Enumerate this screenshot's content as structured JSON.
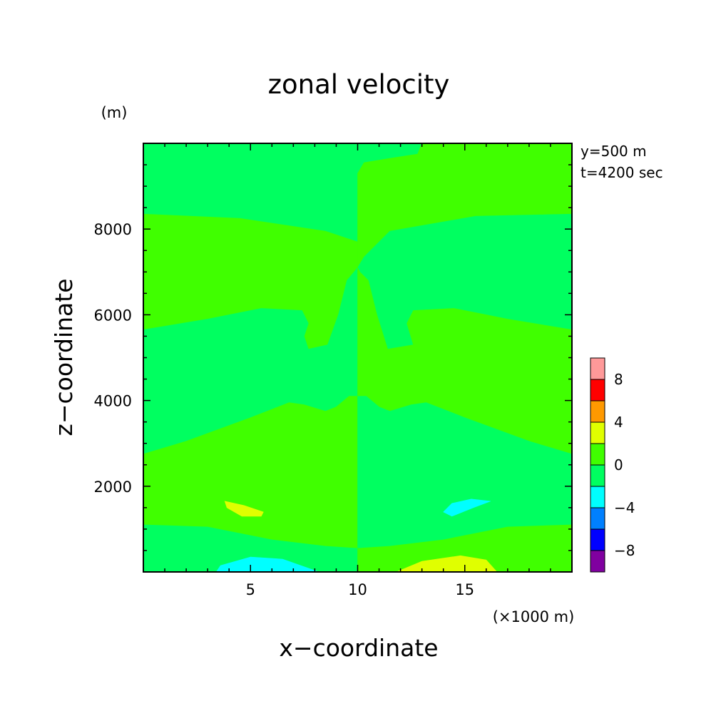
{
  "chart_data": {
    "type": "heatmap",
    "title": "zonal velocity",
    "xlabel": "x−coordinate",
    "ylabel": "z−coordinate",
    "x_unit": "(×1000 m)",
    "y_unit": "(m)",
    "annotations": [
      "y=500 m",
      "t=4200 sec"
    ],
    "xlim": [
      0,
      20
    ],
    "ylim": [
      0,
      10000
    ],
    "x_ticks": [
      5,
      10,
      15
    ],
    "y_ticks": [
      2000,
      4000,
      6000,
      8000
    ],
    "colorbar": {
      "levels": [
        -10,
        -8,
        -6,
        -4,
        -2,
        0,
        2,
        4,
        6,
        8,
        10
      ],
      "tick_labels": [
        -8,
        -4,
        0,
        4,
        8
      ],
      "colors": [
        "#8000a0",
        "#0000ff",
        "#0080ff",
        "#00ffff",
        "#00ff60",
        "#40ff00",
        "#e0ff00",
        "#ff9900",
        "#ff0000",
        "#ff9999"
      ]
    },
    "regions": [
      {
        "value_range": [
          -2,
          0
        ],
        "polygon": [
          [
            0,
            8350
          ],
          [
            4.5,
            8250
          ],
          [
            8.5,
            7950
          ],
          [
            10,
            7700
          ],
          [
            10,
            10000
          ],
          [
            0,
            10000
          ]
        ]
      },
      {
        "value_range": [
          0,
          2
        ],
        "polygon": [
          [
            0,
            8350
          ],
          [
            4.5,
            8250
          ],
          [
            8.5,
            7950
          ],
          [
            10,
            7700
          ],
          [
            10,
            7100
          ],
          [
            9.5,
            6800
          ],
          [
            9.1,
            6000
          ],
          [
            8.6,
            5300
          ],
          [
            7.7,
            5200
          ],
          [
            7.5,
            5500
          ],
          [
            7.7,
            5800
          ],
          [
            7.4,
            6100
          ],
          [
            5.5,
            6150
          ],
          [
            3,
            5900
          ],
          [
            0,
            5650
          ]
        ]
      },
      {
        "value_range": [
          -2,
          0
        ],
        "polygon": [
          [
            0,
            5650
          ],
          [
            3,
            5900
          ],
          [
            5.5,
            6150
          ],
          [
            7.4,
            6100
          ],
          [
            7.7,
            5800
          ],
          [
            7.5,
            5500
          ],
          [
            7.7,
            5200
          ],
          [
            8.6,
            5300
          ],
          [
            9.1,
            6000
          ],
          [
            9.5,
            6800
          ],
          [
            10,
            7100
          ],
          [
            10,
            4100
          ],
          [
            9.6,
            4100
          ],
          [
            9,
            3850
          ],
          [
            8.5,
            3750
          ],
          [
            7.5,
            3900
          ],
          [
            6.8,
            3950
          ],
          [
            5,
            3600
          ],
          [
            2,
            3050
          ],
          [
            0,
            2750
          ]
        ]
      },
      {
        "value_range": [
          0,
          2
        ],
        "polygon": [
          [
            0,
            2750
          ],
          [
            2,
            3050
          ],
          [
            5,
            3600
          ],
          [
            6.8,
            3950
          ],
          [
            7.5,
            3900
          ],
          [
            8.5,
            3750
          ],
          [
            9,
            3850
          ],
          [
            9.6,
            4100
          ],
          [
            10,
            4100
          ],
          [
            10,
            550
          ],
          [
            8.5,
            600
          ],
          [
            6,
            750
          ],
          [
            3,
            1050
          ],
          [
            0,
            1100
          ]
        ]
      },
      {
        "value_range": [
          -2,
          0
        ],
        "polygon": [
          [
            0,
            1100
          ],
          [
            3,
            1050
          ],
          [
            6,
            750
          ],
          [
            8.5,
            600
          ],
          [
            10,
            550
          ],
          [
            10,
            0
          ],
          [
            0,
            0
          ]
        ]
      },
      {
        "value_range": [
          -2,
          0
        ],
        "polygon": [
          [
            10,
            10000
          ],
          [
            10,
            9300
          ],
          [
            10.3,
            9550
          ],
          [
            11.5,
            9650
          ],
          [
            12.8,
            9750
          ],
          [
            13,
            10000
          ]
        ]
      },
      {
        "value_range": [
          0,
          2
        ],
        "polygon": [
          [
            10,
            9300
          ],
          [
            10,
            7100
          ],
          [
            10.3,
            7350
          ],
          [
            11.5,
            7950
          ],
          [
            15.5,
            8300
          ],
          [
            20,
            8350
          ],
          [
            20,
            10000
          ],
          [
            13,
            10000
          ],
          [
            12.8,
            9750
          ],
          [
            11.5,
            9650
          ],
          [
            10.3,
            9550
          ]
        ]
      },
      {
        "value_range": [
          -2,
          0
        ],
        "polygon": [
          [
            10,
            7100
          ],
          [
            10.3,
            7350
          ],
          [
            11.5,
            7950
          ],
          [
            15.5,
            8300
          ],
          [
            20,
            8350
          ],
          [
            20,
            5650
          ],
          [
            17,
            5900
          ],
          [
            14.5,
            6150
          ],
          [
            12.6,
            6100
          ],
          [
            12.3,
            5800
          ],
          [
            12.6,
            5300
          ],
          [
            11.4,
            5200
          ],
          [
            10.9,
            6000
          ],
          [
            10.5,
            6800
          ],
          [
            10.1,
            7000
          ]
        ]
      },
      {
        "value_range": [
          0,
          2
        ],
        "polygon": [
          [
            10,
            7100
          ],
          [
            10.1,
            7000
          ],
          [
            10.5,
            6800
          ],
          [
            10.9,
            6000
          ],
          [
            11.4,
            5200
          ],
          [
            12.6,
            5300
          ],
          [
            12.3,
            5800
          ],
          [
            12.6,
            6100
          ],
          [
            14.5,
            6150
          ],
          [
            17,
            5900
          ],
          [
            20,
            5650
          ],
          [
            20,
            2750
          ],
          [
            18,
            3050
          ],
          [
            15,
            3600
          ],
          [
            13.2,
            3950
          ],
          [
            12.5,
            3900
          ],
          [
            11.5,
            3750
          ],
          [
            11,
            3850
          ],
          [
            10.4,
            4100
          ],
          [
            10,
            4100
          ]
        ]
      },
      {
        "value_range": [
          -2,
          0
        ],
        "polygon": [
          [
            10,
            4100
          ],
          [
            10.4,
            4100
          ],
          [
            11,
            3850
          ],
          [
            11.5,
            3750
          ],
          [
            12.5,
            3900
          ],
          [
            13.2,
            3950
          ],
          [
            15,
            3600
          ],
          [
            18,
            3050
          ],
          [
            20,
            2750
          ],
          [
            20,
            1100
          ],
          [
            17,
            1050
          ],
          [
            14,
            750
          ],
          [
            11.5,
            600
          ],
          [
            10,
            550
          ]
        ]
      },
      {
        "value_range": [
          0,
          2
        ],
        "polygon": [
          [
            10,
            550
          ],
          [
            11.5,
            600
          ],
          [
            14,
            750
          ],
          [
            17,
            1050
          ],
          [
            20,
            1100
          ],
          [
            20,
            0
          ],
          [
            10,
            0
          ]
        ]
      },
      {
        "value_range": [
          2,
          4
        ],
        "polygon": [
          [
            3.8,
            1650
          ],
          [
            4.7,
            1550
          ],
          [
            5.6,
            1400
          ],
          [
            5.5,
            1300
          ],
          [
            4.6,
            1300
          ],
          [
            3.9,
            1500
          ]
        ]
      },
      {
        "value_range": [
          -4,
          -2
        ],
        "polygon": [
          [
            14.4,
            1300
          ],
          [
            15.4,
            1500
          ],
          [
            16.2,
            1650
          ],
          [
            15.3,
            1700
          ],
          [
            14.4,
            1600
          ],
          [
            14.0,
            1400
          ]
        ]
      },
      {
        "value_range": [
          -4,
          -2
        ],
        "polygon": [
          [
            3.4,
            0
          ],
          [
            3.6,
            150
          ],
          [
            5.0,
            350
          ],
          [
            6.5,
            300
          ],
          [
            8.2,
            0
          ]
        ]
      },
      {
        "value_range": [
          2,
          4
        ],
        "polygon": [
          [
            11.8,
            0
          ],
          [
            13.0,
            250
          ],
          [
            14.8,
            380
          ],
          [
            16.0,
            280
          ],
          [
            16.5,
            0
          ]
        ]
      }
    ]
  }
}
